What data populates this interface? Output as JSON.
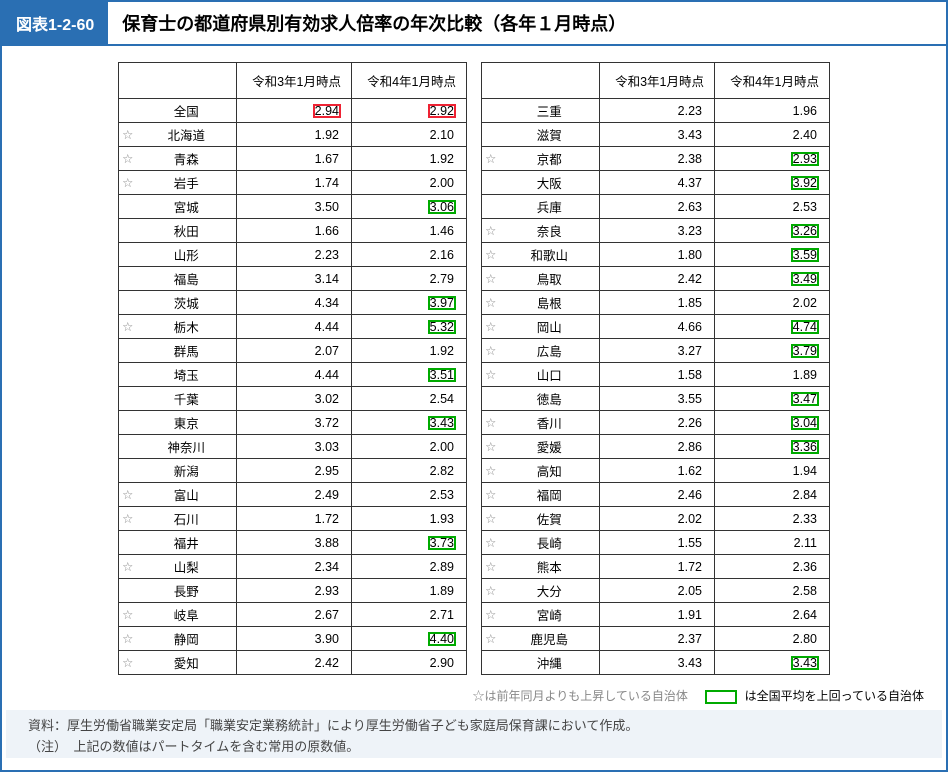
{
  "title_tag": "図表1-2-60",
  "title_text": "保育士の都道府県別有効求人倍率の年次比較（各年１月時点）",
  "columns": {
    "col1": "令和3年1月時点",
    "col2": "令和4年1月時点"
  },
  "colors": {
    "border_main": "#2a6fb3",
    "highlight_red": "#e23",
    "highlight_green": "#0a0",
    "star": "#888",
    "footnote_bg": "#eef3f8"
  },
  "legend": {
    "star_text": "☆は前年同月よりも上昇している自治体",
    "box_text": "は全国平均を上回っている自治体"
  },
  "footnotes": [
    "資料：厚生労働省職業安定局「職業安定業務統計」により厚生労働省子ども家庭局保育課において作成。",
    "（注）　上記の数値はパートタイムを含む常用の原数値。"
  ],
  "left_rows": [
    {
      "star": "",
      "pref": "全国",
      "v1": "2.94",
      "v2": "2.92",
      "hl1": "red",
      "hl2": "red"
    },
    {
      "star": "☆",
      "pref": "北海道",
      "v1": "1.92",
      "v2": "2.10",
      "hl1": "",
      "hl2": ""
    },
    {
      "star": "☆",
      "pref": "青森",
      "v1": "1.67",
      "v2": "1.92",
      "hl1": "",
      "hl2": ""
    },
    {
      "star": "☆",
      "pref": "岩手",
      "v1": "1.74",
      "v2": "2.00",
      "hl1": "",
      "hl2": ""
    },
    {
      "star": "",
      "pref": "宮城",
      "v1": "3.50",
      "v2": "3.06",
      "hl1": "",
      "hl2": "green"
    },
    {
      "star": "",
      "pref": "秋田",
      "v1": "1.66",
      "v2": "1.46",
      "hl1": "",
      "hl2": ""
    },
    {
      "star": "",
      "pref": "山形",
      "v1": "2.23",
      "v2": "2.16",
      "hl1": "",
      "hl2": ""
    },
    {
      "star": "",
      "pref": "福島",
      "v1": "3.14",
      "v2": "2.79",
      "hl1": "",
      "hl2": ""
    },
    {
      "star": "",
      "pref": "茨城",
      "v1": "4.34",
      "v2": "3.97",
      "hl1": "",
      "hl2": "green"
    },
    {
      "star": "☆",
      "pref": "栃木",
      "v1": "4.44",
      "v2": "5.32",
      "hl1": "",
      "hl2": "green"
    },
    {
      "star": "",
      "pref": "群馬",
      "v1": "2.07",
      "v2": "1.92",
      "hl1": "",
      "hl2": ""
    },
    {
      "star": "",
      "pref": "埼玉",
      "v1": "4.44",
      "v2": "3.51",
      "hl1": "",
      "hl2": "green"
    },
    {
      "star": "",
      "pref": "千葉",
      "v1": "3.02",
      "v2": "2.54",
      "hl1": "",
      "hl2": ""
    },
    {
      "star": "",
      "pref": "東京",
      "v1": "3.72",
      "v2": "3.43",
      "hl1": "",
      "hl2": "green"
    },
    {
      "star": "",
      "pref": "神奈川",
      "v1": "3.03",
      "v2": "2.00",
      "hl1": "",
      "hl2": ""
    },
    {
      "star": "",
      "pref": "新潟",
      "v1": "2.95",
      "v2": "2.82",
      "hl1": "",
      "hl2": ""
    },
    {
      "star": "☆",
      "pref": "富山",
      "v1": "2.49",
      "v2": "2.53",
      "hl1": "",
      "hl2": ""
    },
    {
      "star": "☆",
      "pref": "石川",
      "v1": "1.72",
      "v2": "1.93",
      "hl1": "",
      "hl2": ""
    },
    {
      "star": "",
      "pref": "福井",
      "v1": "3.88",
      "v2": "3.73",
      "hl1": "",
      "hl2": "green"
    },
    {
      "star": "☆",
      "pref": "山梨",
      "v1": "2.34",
      "v2": "2.89",
      "hl1": "",
      "hl2": ""
    },
    {
      "star": "",
      "pref": "長野",
      "v1": "2.93",
      "v2": "1.89",
      "hl1": "",
      "hl2": ""
    },
    {
      "star": "☆",
      "pref": "岐阜",
      "v1": "2.67",
      "v2": "2.71",
      "hl1": "",
      "hl2": ""
    },
    {
      "star": "☆",
      "pref": "静岡",
      "v1": "3.90",
      "v2": "4.40",
      "hl1": "",
      "hl2": "green"
    },
    {
      "star": "☆",
      "pref": "愛知",
      "v1": "2.42",
      "v2": "2.90",
      "hl1": "",
      "hl2": ""
    }
  ],
  "right_rows": [
    {
      "star": "",
      "pref": "三重",
      "v1": "2.23",
      "v2": "1.96",
      "hl1": "",
      "hl2": ""
    },
    {
      "star": "",
      "pref": "滋賀",
      "v1": "3.43",
      "v2": "2.40",
      "hl1": "",
      "hl2": ""
    },
    {
      "star": "☆",
      "pref": "京都",
      "v1": "2.38",
      "v2": "2.93",
      "hl1": "",
      "hl2": "green"
    },
    {
      "star": "",
      "pref": "大阪",
      "v1": "4.37",
      "v2": "3.92",
      "hl1": "",
      "hl2": "green"
    },
    {
      "star": "",
      "pref": "兵庫",
      "v1": "2.63",
      "v2": "2.53",
      "hl1": "",
      "hl2": ""
    },
    {
      "star": "☆",
      "pref": "奈良",
      "v1": "3.23",
      "v2": "3.26",
      "hl1": "",
      "hl2": "green"
    },
    {
      "star": "☆",
      "pref": "和歌山",
      "v1": "1.80",
      "v2": "3.59",
      "hl1": "",
      "hl2": "green"
    },
    {
      "star": "☆",
      "pref": "鳥取",
      "v1": "2.42",
      "v2": "3.49",
      "hl1": "",
      "hl2": "green"
    },
    {
      "star": "☆",
      "pref": "島根",
      "v1": "1.85",
      "v2": "2.02",
      "hl1": "",
      "hl2": ""
    },
    {
      "star": "☆",
      "pref": "岡山",
      "v1": "4.66",
      "v2": "4.74",
      "hl1": "",
      "hl2": "green"
    },
    {
      "star": "☆",
      "pref": "広島",
      "v1": "3.27",
      "v2": "3.79",
      "hl1": "",
      "hl2": "green"
    },
    {
      "star": "☆",
      "pref": "山口",
      "v1": "1.58",
      "v2": "1.89",
      "hl1": "",
      "hl2": ""
    },
    {
      "star": "",
      "pref": "徳島",
      "v1": "3.55",
      "v2": "3.47",
      "hl1": "",
      "hl2": "green"
    },
    {
      "star": "☆",
      "pref": "香川",
      "v1": "2.26",
      "v2": "3.04",
      "hl1": "",
      "hl2": "green"
    },
    {
      "star": "☆",
      "pref": "愛媛",
      "v1": "2.86",
      "v2": "3.36",
      "hl1": "",
      "hl2": "green"
    },
    {
      "star": "☆",
      "pref": "高知",
      "v1": "1.62",
      "v2": "1.94",
      "hl1": "",
      "hl2": ""
    },
    {
      "star": "☆",
      "pref": "福岡",
      "v1": "2.46",
      "v2": "2.84",
      "hl1": "",
      "hl2": ""
    },
    {
      "star": "☆",
      "pref": "佐賀",
      "v1": "2.02",
      "v2": "2.33",
      "hl1": "",
      "hl2": ""
    },
    {
      "star": "☆",
      "pref": "長崎",
      "v1": "1.55",
      "v2": "2.11",
      "hl1": "",
      "hl2": ""
    },
    {
      "star": "☆",
      "pref": "熊本",
      "v1": "1.72",
      "v2": "2.36",
      "hl1": "",
      "hl2": ""
    },
    {
      "star": "☆",
      "pref": "大分",
      "v1": "2.05",
      "v2": "2.58",
      "hl1": "",
      "hl2": ""
    },
    {
      "star": "☆",
      "pref": "宮崎",
      "v1": "1.91",
      "v2": "2.64",
      "hl1": "",
      "hl2": ""
    },
    {
      "star": "☆",
      "pref": "鹿児島",
      "v1": "2.37",
      "v2": "2.80",
      "hl1": "",
      "hl2": ""
    },
    {
      "star": "",
      "pref": "沖縄",
      "v1": "3.43",
      "v2": "3.43",
      "hl1": "",
      "hl2": "green"
    }
  ]
}
